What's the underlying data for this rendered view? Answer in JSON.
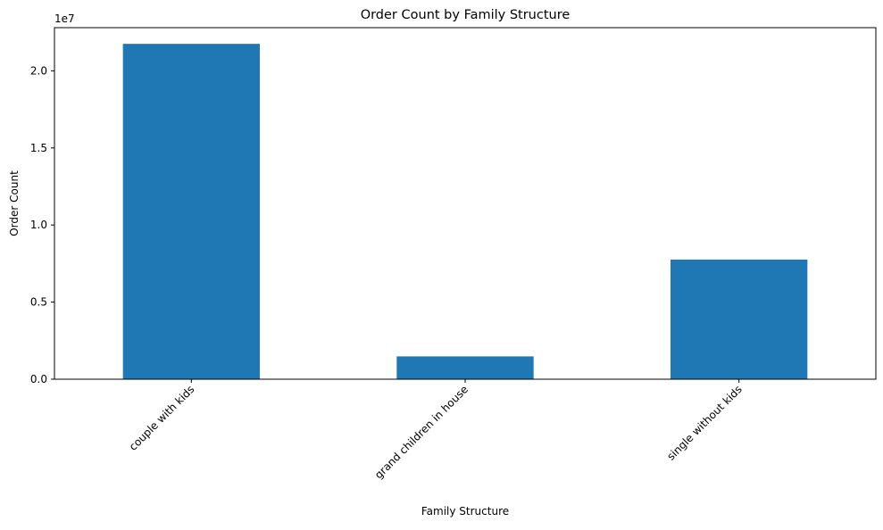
{
  "chart_data": {
    "type": "bar",
    "title": "Order Count by Family Structure",
    "xlabel": "Family Structure",
    "ylabel": "Order Count",
    "categories": [
      "couple with kids",
      "grand children in house",
      "single without kids"
    ],
    "values": [
      21750000,
      1480000,
      7760000
    ],
    "ylim": [
      0,
      22800000
    ],
    "yticks": [
      0,
      5000000,
      10000000,
      15000000,
      20000000
    ],
    "ytick_labels": [
      "0.0",
      "0.5",
      "1.0",
      "1.5",
      "2.0"
    ],
    "offset_label": "1e7",
    "bar_color": "#1f77b4",
    "grid": false,
    "legend": "none"
  }
}
